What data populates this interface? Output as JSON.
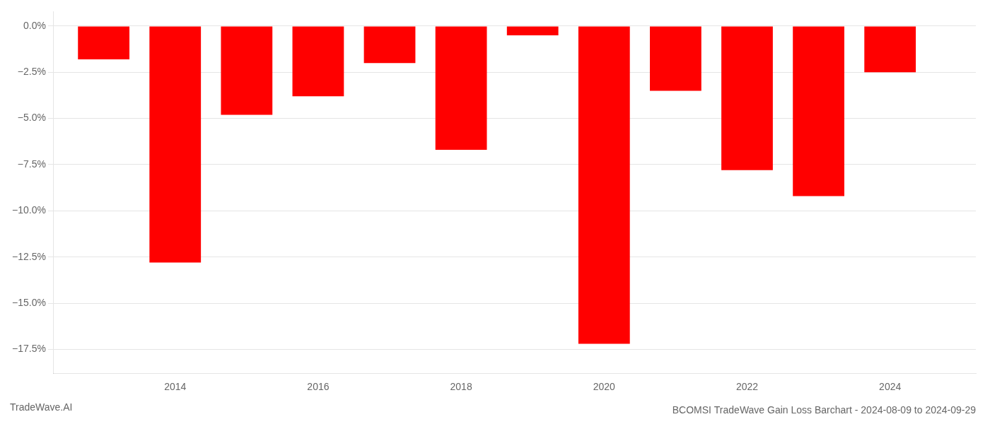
{
  "chart_data": {
    "type": "bar",
    "title": "BCOMSI TradeWave Gain Loss Barchart - 2024-08-09 to 2024-09-29",
    "annotations": [
      "TradeWave.AI"
    ],
    "x": [
      2013,
      2014,
      2015,
      2016,
      2017,
      2018,
      2019,
      2020,
      2021,
      2022,
      2023,
      2024
    ],
    "values": [
      -1.8,
      -12.8,
      -4.8,
      -3.8,
      -2.0,
      -6.7,
      -0.5,
      -17.2,
      -3.5,
      -7.8,
      -9.2,
      -2.5
    ],
    "color": "#ff0000",
    "xlim": [
      2012.3,
      2025.2
    ],
    "xticks": [
      2014,
      2016,
      2018,
      2020,
      2022,
      2024
    ],
    "ylim": [
      -18.8,
      0.8
    ],
    "yticks": [
      {
        "value": 0.0,
        "label": "0.0%"
      },
      {
        "value": -2.5,
        "label": "−2.5%"
      },
      {
        "value": -5.0,
        "label": "−5.0%"
      },
      {
        "value": -7.5,
        "label": "−7.5%"
      },
      {
        "value": -10.0,
        "label": "−10.0%"
      },
      {
        "value": -12.5,
        "label": "−12.5%"
      },
      {
        "value": -15.0,
        "label": "−15.0%"
      },
      {
        "value": -17.5,
        "label": "−17.5%"
      }
    ],
    "grid": true
  }
}
